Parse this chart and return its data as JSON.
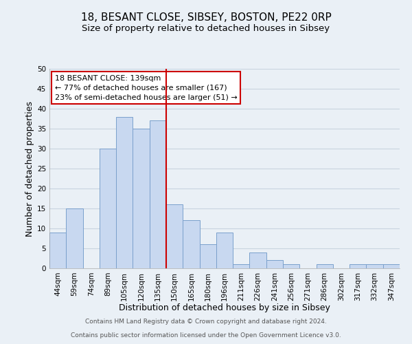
{
  "title": "18, BESANT CLOSE, SIBSEY, BOSTON, PE22 0RP",
  "subtitle": "Size of property relative to detached houses in Sibsey",
  "xlabel": "Distribution of detached houses by size in Sibsey",
  "ylabel": "Number of detached properties",
  "footer_line1": "Contains HM Land Registry data © Crown copyright and database right 2024.",
  "footer_line2": "Contains public sector information licensed under the Open Government Licence v3.0.",
  "annotation_title": "18 BESANT CLOSE: 139sqm",
  "annotation_line2": "← 77% of detached houses are smaller (167)",
  "annotation_line3": "23% of semi-detached houses are larger (51) →",
  "bar_color": "#c8d8f0",
  "bar_edgecolor": "#7aa0cc",
  "vline_color": "#cc0000",
  "vline_x_index": 6,
  "categories": [
    "44sqm",
    "59sqm",
    "74sqm",
    "89sqm",
    "105sqm",
    "120sqm",
    "135sqm",
    "150sqm",
    "165sqm",
    "180sqm",
    "196sqm",
    "211sqm",
    "226sqm",
    "241sqm",
    "256sqm",
    "271sqm",
    "286sqm",
    "302sqm",
    "317sqm",
    "332sqm",
    "347sqm"
  ],
  "values": [
    9,
    15,
    0,
    30,
    38,
    35,
    37,
    16,
    12,
    6,
    9,
    1,
    4,
    2,
    1,
    0,
    1,
    0,
    1,
    1,
    1
  ],
  "ylim": [
    0,
    50
  ],
  "yticks": [
    0,
    5,
    10,
    15,
    20,
    25,
    30,
    35,
    40,
    45,
    50
  ],
  "grid_color": "#c8d4e0",
  "background_color": "#eaf0f6",
  "plot_background_color": "#eaf0f6",
  "footer_background": "#ffffff",
  "title_fontsize": 11,
  "subtitle_fontsize": 9.5,
  "axis_label_fontsize": 9,
  "tick_fontsize": 7.5,
  "annotation_fontsize": 8,
  "annotation_box_edgecolor": "#cc0000",
  "annotation_box_facecolor": "#ffffff"
}
